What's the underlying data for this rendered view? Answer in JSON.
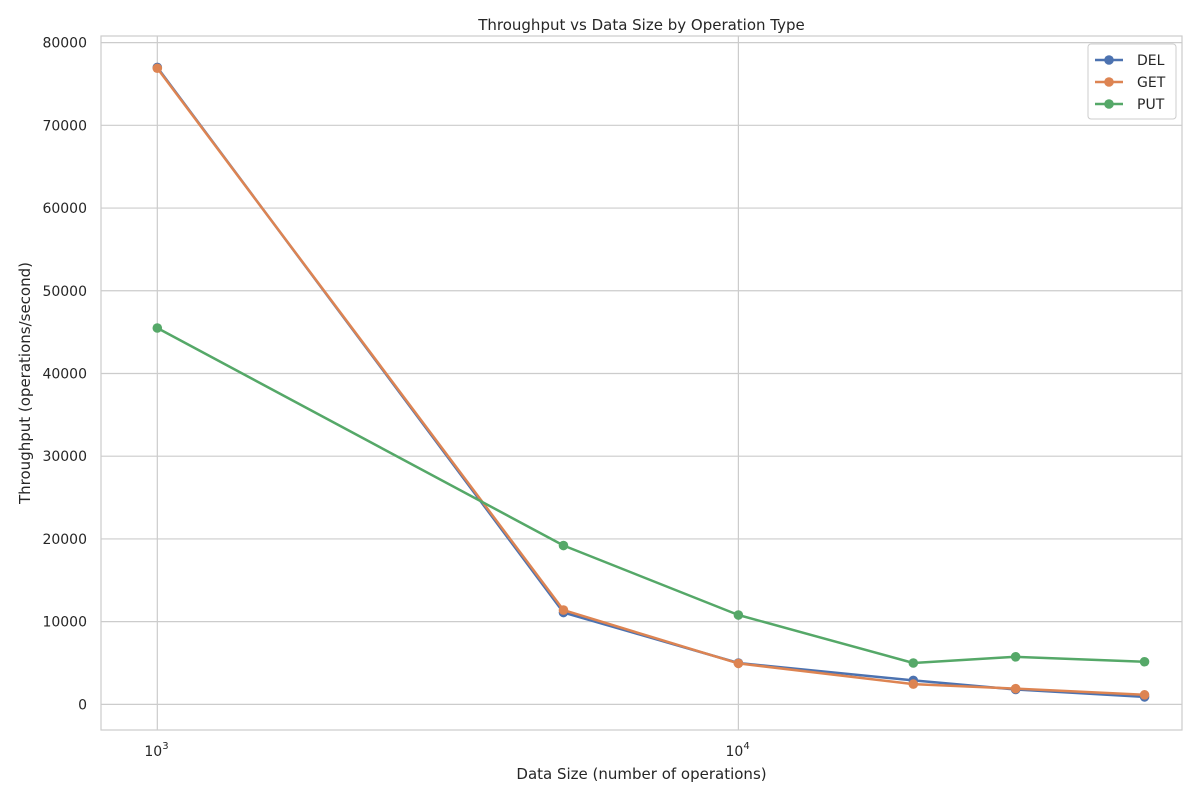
{
  "chart_data": {
    "type": "line",
    "title": "Throughput vs Data Size by Operation Type",
    "xlabel": "Data Size (number of operations)",
    "ylabel": "Throughput (operations/second)",
    "xscale": "log",
    "x": [
      1000,
      5000,
      10000,
      20000,
      30000,
      50000
    ],
    "xlim": [
      800,
      58000
    ],
    "ylim": [
      -3100,
      80800
    ],
    "xticks": [
      1000,
      10000
    ],
    "xtick_labels": [
      "10",
      "10"
    ],
    "xtick_exponents": [
      "3",
      "4"
    ],
    "yticks": [
      0,
      10000,
      20000,
      30000,
      40000,
      50000,
      60000,
      70000,
      80000
    ],
    "ytick_labels": [
      "0",
      "10000",
      "20000",
      "30000",
      "40000",
      "50000",
      "60000",
      "70000",
      "80000"
    ],
    "grid": true,
    "legend_position": "top-right",
    "series": [
      {
        "name": "DEL",
        "color": "#4c72b0",
        "values": [
          77000,
          11100,
          5000,
          2900,
          1800,
          900
        ]
      },
      {
        "name": "GET",
        "color": "#dd8452",
        "values": [
          76900,
          11400,
          4950,
          2450,
          1900,
          1150
        ]
      },
      {
        "name": "PUT",
        "color": "#55a868",
        "values": [
          45500,
          19200,
          10800,
          5000,
          5750,
          5150
        ]
      }
    ]
  }
}
